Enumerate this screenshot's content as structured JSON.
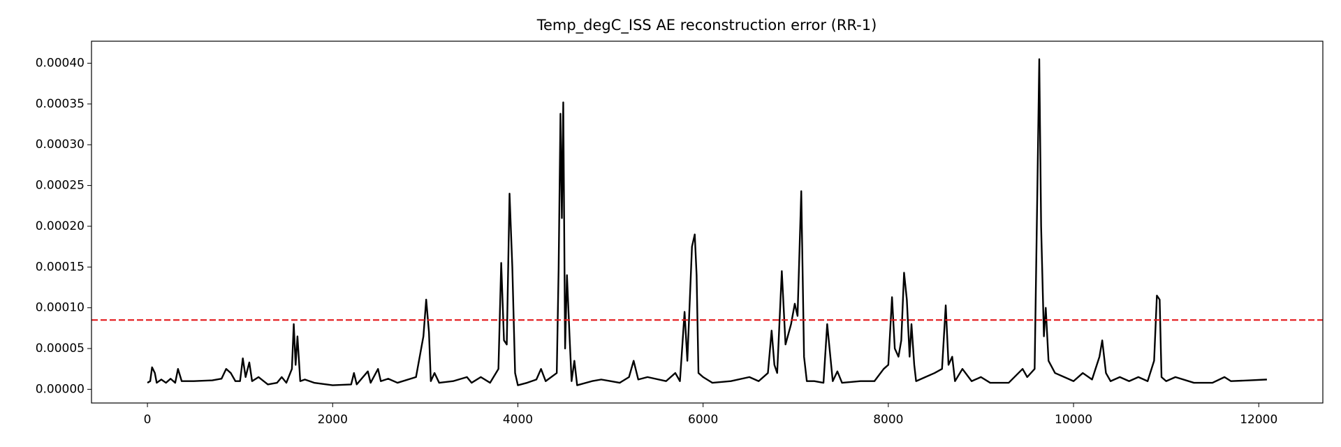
{
  "chart_data": {
    "type": "line",
    "title": "Temp_degC_ISS AE reconstruction error (RR-1)",
    "x": [
      0,
      30,
      50,
      80,
      100,
      150,
      200,
      250,
      300,
      330,
      370,
      500,
      700,
      800,
      850,
      900,
      950,
      1000,
      1030,
      1060,
      1100,
      1130,
      1200,
      1300,
      1400,
      1450,
      1500,
      1560,
      1580,
      1600,
      1620,
      1650,
      1700,
      1800,
      2000,
      2200,
      2230,
      2260,
      2380,
      2410,
      2490,
      2520,
      2600,
      2700,
      2900,
      2980,
      3010,
      3040,
      3060,
      3100,
      3150,
      3300,
      3450,
      3500,
      3600,
      3700,
      3790,
      3820,
      3850,
      3880,
      3910,
      3940,
      3970,
      4000,
      4100,
      4200,
      4250,
      4300,
      4420,
      4440,
      4460,
      4475,
      4490,
      4510,
      4530,
      4560,
      4580,
      4610,
      4640,
      4800,
      4900,
      5000,
      5100,
      5200,
      5250,
      5300,
      5400,
      5600,
      5700,
      5750,
      5800,
      5830,
      5880,
      5910,
      5930,
      5950,
      6000,
      6100,
      6300,
      6500,
      6600,
      6700,
      6740,
      6770,
      6800,
      6850,
      6890,
      6950,
      6990,
      7020,
      7060,
      7090,
      7120,
      7200,
      7300,
      7340,
      7370,
      7400,
      7450,
      7500,
      7700,
      7850,
      7950,
      8000,
      8040,
      8070,
      8110,
      8140,
      8170,
      8200,
      8230,
      8250,
      8280,
      8300,
      8400,
      8500,
      8580,
      8620,
      8650,
      8690,
      8720,
      8800,
      8900,
      9000,
      9100,
      9300,
      9450,
      9500,
      9580,
      9610,
      9630,
      9650,
      9680,
      9700,
      9730,
      9800,
      9900,
      10000,
      10100,
      10200,
      10280,
      10310,
      10350,
      10400,
      10500,
      10600,
      10700,
      10800,
      10870,
      10900,
      10930,
      10950,
      11000,
      11100,
      11300,
      11500,
      11630,
      11700,
      11900,
      12088
    ],
    "series": [
      {
        "color": "#000000",
        "values": [
          8e-06,
          1e-05,
          2.7e-05,
          2e-05,
          8e-06,
          1.2e-05,
          8e-06,
          1.3e-05,
          8e-06,
          2.5e-05,
          1e-05,
          1e-05,
          1.1e-05,
          1.3e-05,
          2.5e-05,
          2e-05,
          1e-05,
          1e-05,
          3.8e-05,
          1.5e-05,
          3.3e-05,
          1e-05,
          1.5e-05,
          6e-06,
          8e-06,
          1.5e-05,
          8e-06,
          2.5e-05,
          8e-05,
          3e-05,
          6.5e-05,
          1e-05,
          1.2e-05,
          8e-06,
          5e-06,
          6e-06,
          2e-05,
          6e-06,
          2.2e-05,
          8e-06,
          2.5e-05,
          1e-05,
          1.3e-05,
          8e-06,
          1.5e-05,
          6.5e-05,
          0.00011,
          7e-05,
          1e-05,
          2e-05,
          8e-06,
          1e-05,
          1.5e-05,
          8e-06,
          1.5e-05,
          8e-06,
          2.5e-05,
          0.000155,
          6e-05,
          5.5e-05,
          0.00024,
          0.00015,
          2e-05,
          5e-06,
          8e-06,
          1.2e-05,
          2.5e-05,
          1e-05,
          2e-05,
          0.000148,
          0.000338,
          0.00021,
          0.000352,
          5e-05,
          0.00014,
          6e-05,
          1e-05,
          3.5e-05,
          5e-06,
          1e-05,
          1.2e-05,
          1e-05,
          8e-06,
          1.5e-05,
          3.5e-05,
          1.2e-05,
          1.5e-05,
          1e-05,
          2e-05,
          1e-05,
          9.5e-05,
          3.5e-05,
          0.000175,
          0.00019,
          0.00014,
          2e-05,
          1.5e-05,
          8e-06,
          1e-05,
          1.5e-05,
          1e-05,
          2e-05,
          7.2e-05,
          3e-05,
          2e-05,
          0.000145,
          5.5e-05,
          8e-05,
          0.000105,
          9e-05,
          0.000243,
          4e-05,
          1e-05,
          1e-05,
          8e-06,
          8e-05,
          4.5e-05,
          1e-05,
          2.2e-05,
          8e-06,
          1e-05,
          1e-05,
          2.5e-05,
          3e-05,
          0.000113,
          5e-05,
          4e-05,
          6e-05,
          0.000143,
          0.00011,
          4e-05,
          8e-05,
          3e-05,
          1e-05,
          1.5e-05,
          2e-05,
          2.5e-05,
          0.000103,
          3e-05,
          4e-05,
          1e-05,
          2.5e-05,
          1e-05,
          1.5e-05,
          8e-06,
          8e-06,
          2.5e-05,
          1.5e-05,
          2.5e-05,
          0.00025,
          0.000405,
          0.0002,
          6.5e-05,
          0.0001,
          3.5e-05,
          2e-05,
          1.5e-05,
          1e-05,
          2e-05,
          1.2e-05,
          4e-05,
          6e-05,
          2e-05,
          1e-05,
          1.5e-05,
          1e-05,
          1.5e-05,
          1e-05,
          3.5e-05,
          0.000115,
          0.00011,
          1.5e-05,
          1e-05,
          1.5e-05,
          8e-06,
          8e-06,
          1.5e-05,
          1e-05,
          1.1e-05,
          1.2e-05
        ]
      }
    ],
    "threshold": 8.5e-05,
    "threshold_color": "#e41a1c",
    "xlim": [
      -604,
      12692
    ],
    "xticks": [
      0,
      2000,
      4000,
      6000,
      8000,
      10000,
      12000
    ],
    "ylim": [
      -1.68e-05,
      0.000427
    ],
    "yticks": [
      {
        "value": 0,
        "label": "0.00000"
      },
      {
        "value": 5e-05,
        "label": "0.00005"
      },
      {
        "value": 0.0001,
        "label": "0.00010"
      },
      {
        "value": 0.00015,
        "label": "0.00015"
      },
      {
        "value": 0.0002,
        "label": "0.00020"
      },
      {
        "value": 0.00025,
        "label": "0.00025"
      },
      {
        "value": 0.0003,
        "label": "0.00030"
      },
      {
        "value": 0.00035,
        "label": "0.00035"
      },
      {
        "value": 0.0004,
        "label": "0.00040"
      }
    ],
    "grid": false
  }
}
